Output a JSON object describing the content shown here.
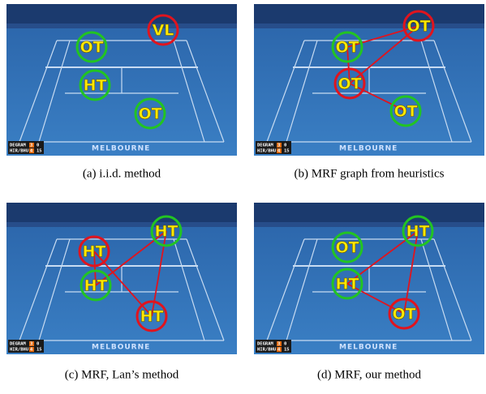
{
  "figure": {
    "scoreboard": [
      [
        "DEGRAM",
        "3",
        "0"
      ],
      [
        "HIR/BHU",
        "4",
        "15"
      ]
    ],
    "venue": "MELBOURNE",
    "panels": [
      {
        "caption": "(a) i.i.d. method",
        "nodes": [
          {
            "label": "VL",
            "color": "#e0141e"
          },
          {
            "label": "OT",
            "color": "#22c422"
          },
          {
            "label": "HT",
            "color": "#22c422"
          },
          {
            "label": "OT",
            "color": "#22c422"
          }
        ]
      },
      {
        "caption": "(b) MRF graph from heuristics",
        "nodes": [
          {
            "label": "OT",
            "color": "#e0141e"
          },
          {
            "label": "OT",
            "color": "#22c422"
          },
          {
            "label": "OT",
            "color": "#e0141e"
          },
          {
            "label": "OT",
            "color": "#22c422"
          }
        ]
      },
      {
        "caption": "(c) MRF, Lan’s method",
        "nodes": [
          {
            "label": "HT",
            "color": "#e0141e"
          },
          {
            "label": "HT",
            "color": "#22c422"
          },
          {
            "label": "HT",
            "color": "#22c422"
          },
          {
            "label": "HT",
            "color": "#e0141e"
          }
        ]
      },
      {
        "caption": "(d) MRF, our method",
        "nodes": [
          {
            "label": "OT",
            "color": "#22c422"
          },
          {
            "label": "HT",
            "color": "#22c422"
          },
          {
            "label": "HT",
            "color": "#22c422"
          },
          {
            "label": "OT",
            "color": "#e0141e"
          }
        ]
      }
    ]
  }
}
